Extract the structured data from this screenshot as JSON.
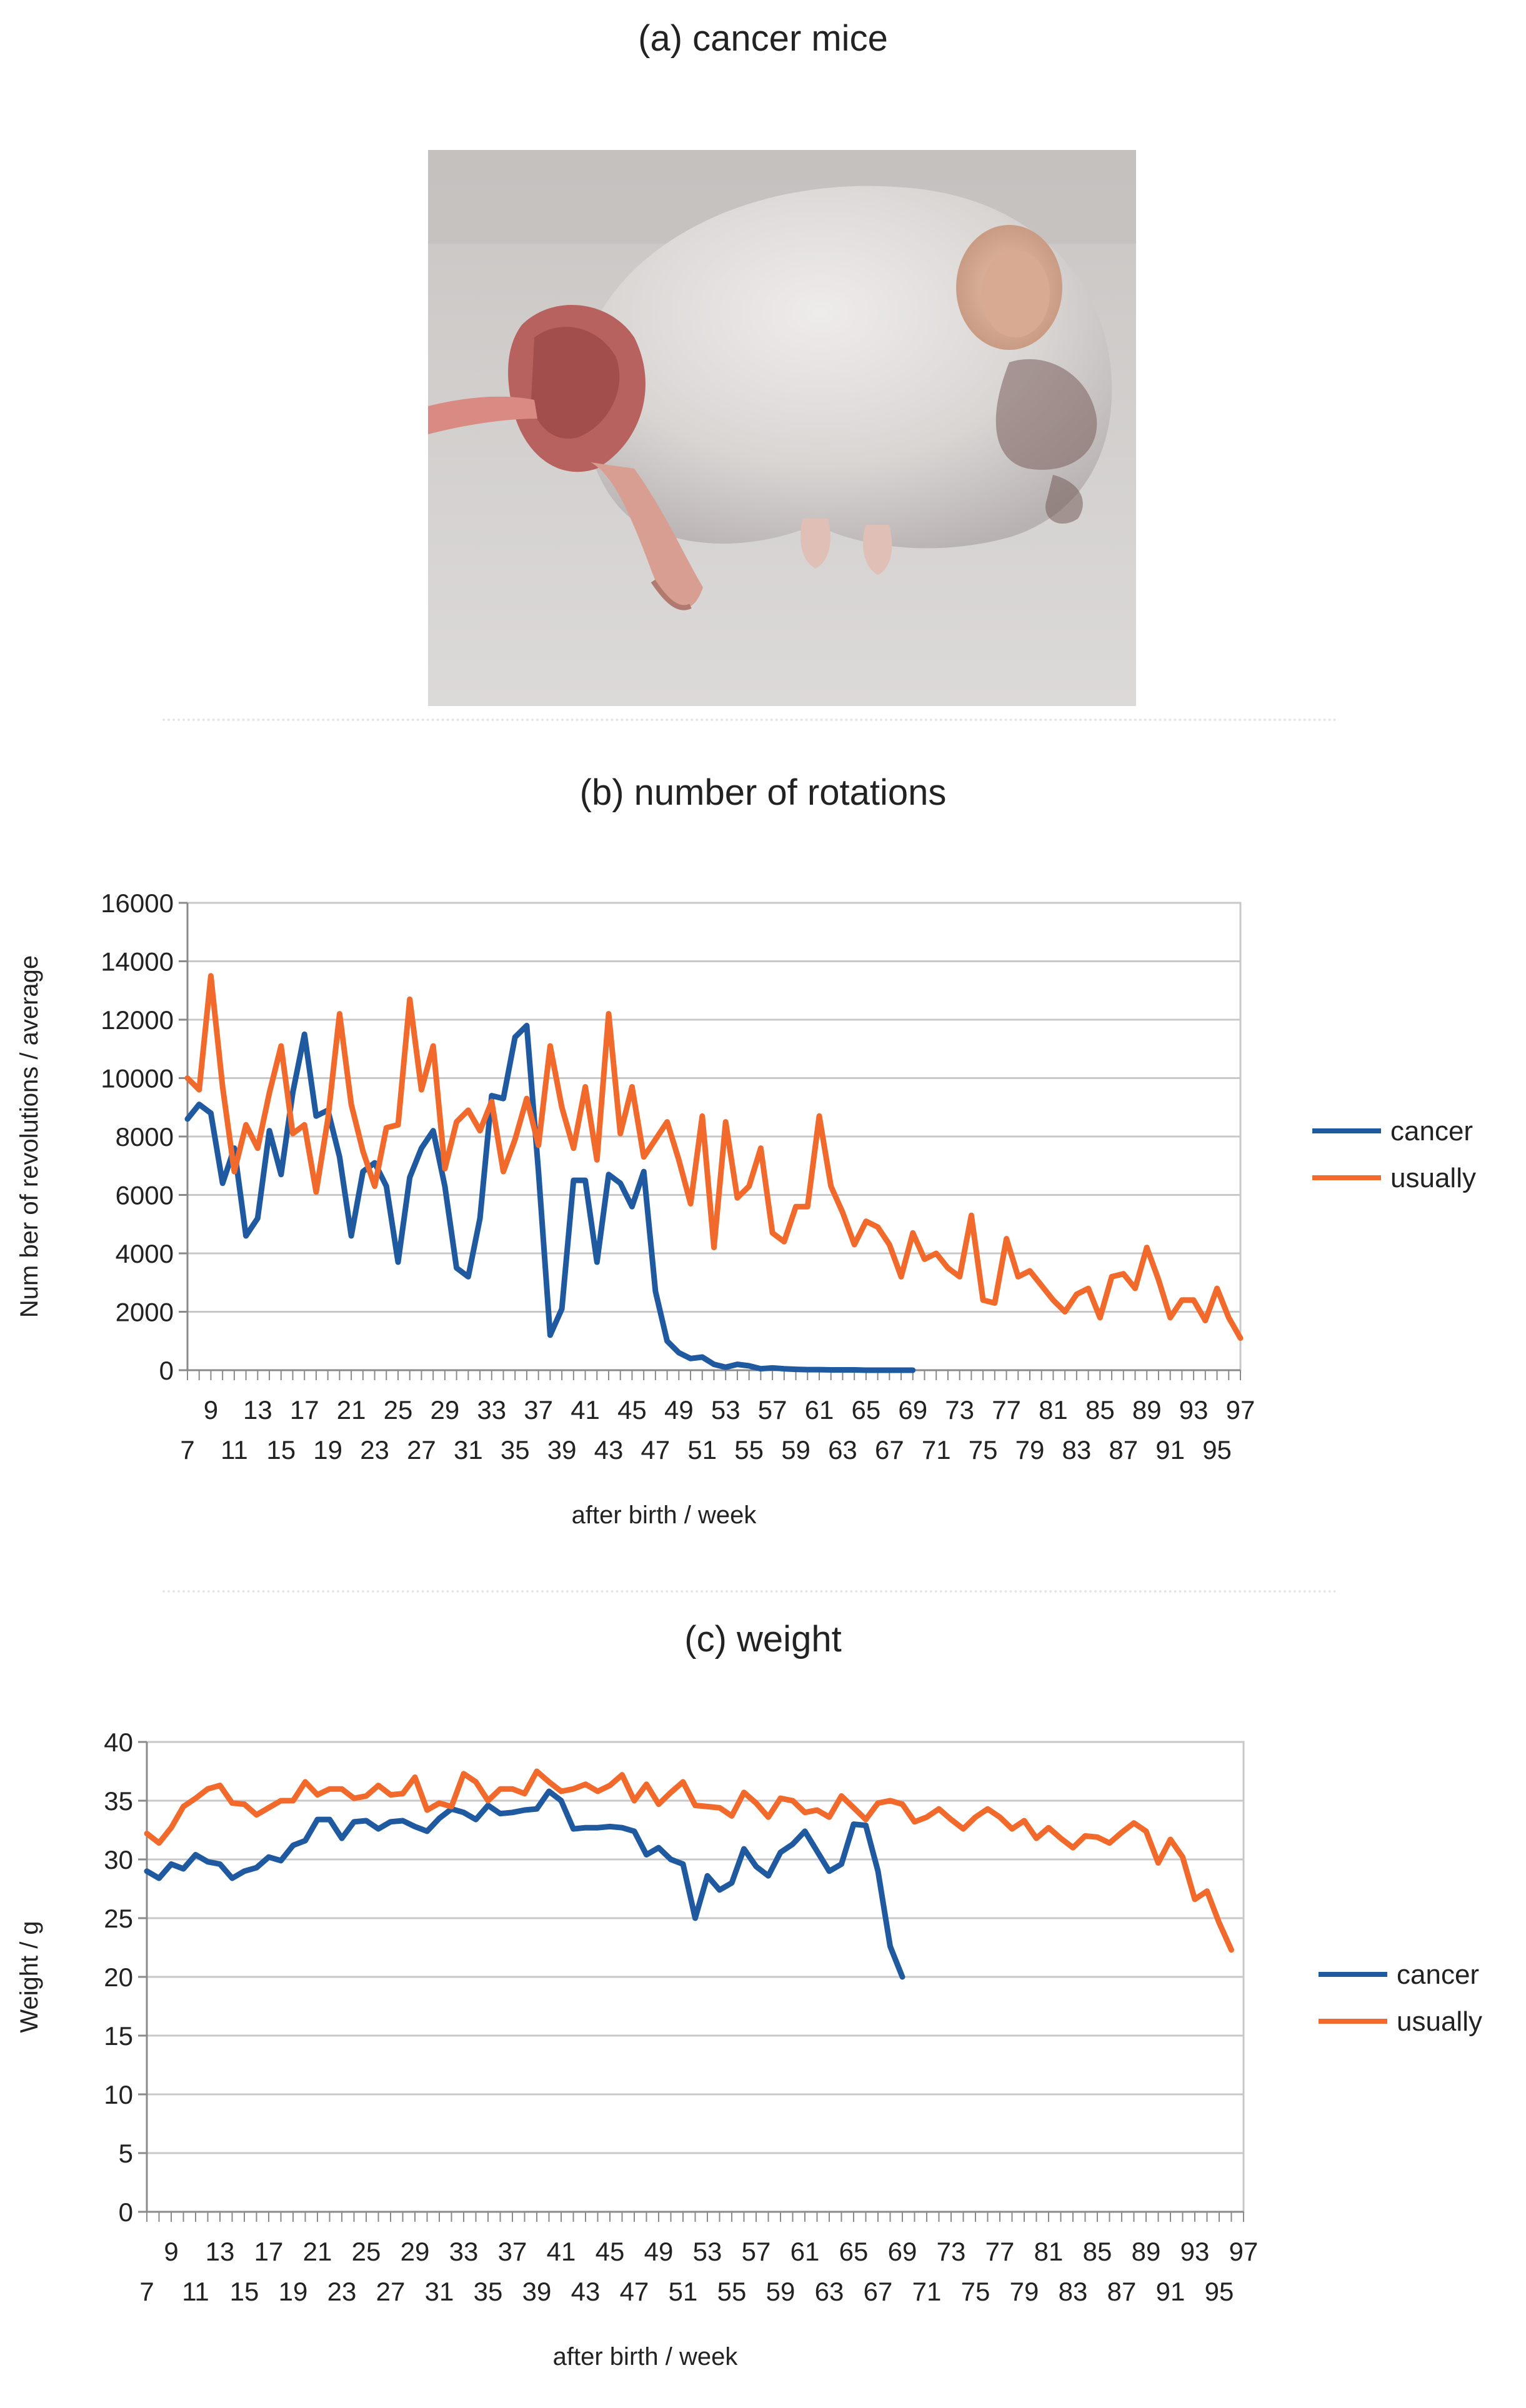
{
  "panels": {
    "a_title": "(a) cancer mice",
    "b_title": "(b) number of rotations",
    "c_title": "(c) weight"
  },
  "photo": {
    "subject": "cancer-mouse-photo"
  },
  "colors": {
    "cancer": "#1f5aa0",
    "usually": "#f26a2b",
    "grid": "#c8c8c8",
    "axis": "#8a8a8a"
  },
  "chart_data": [
    {
      "type": "line",
      "title": "(b) number of rotations",
      "xlabel": "after birth / week",
      "ylabel": "Num ber of revolutions / average",
      "ylim": [
        0,
        16000
      ],
      "yticks": [
        "0",
        "2000",
        "4000",
        "6000",
        "8000",
        "10000",
        "12000",
        "14000",
        "16000"
      ],
      "x_range": [
        7,
        97
      ],
      "x_tick_labels_upper": [
        "9",
        "13",
        "17",
        "21",
        "25",
        "29",
        "33",
        "37",
        "41",
        "45",
        "49",
        "53",
        "57",
        "61",
        "65",
        "69",
        "73",
        "77",
        "81",
        "85",
        "89",
        "93",
        "97"
      ],
      "x_tick_labels_lower": [
        "7",
        "11",
        "15",
        "19",
        "23",
        "27",
        "31",
        "35",
        "39",
        "43",
        "47",
        "51",
        "55",
        "59",
        "63",
        "67",
        "71",
        "75",
        "79",
        "83",
        "87",
        "91",
        "95"
      ],
      "legend": [
        "cancer",
        "usually"
      ],
      "series": [
        {
          "name": "cancer",
          "x_start": 7,
          "values": [
            8600,
            9100,
            8800,
            6400,
            7600,
            4600,
            5200,
            8200,
            6700,
            9500,
            11500,
            8700,
            8900,
            7300,
            4600,
            6800,
            7100,
            6300,
            3700,
            6600,
            7600,
            8200,
            6300,
            3500,
            3200,
            5200,
            9400,
            9300,
            11400,
            11800,
            6800,
            1200,
            2100,
            6500,
            6500,
            3700,
            6700,
            6400,
            5600,
            6800,
            2700,
            1000,
            600,
            400,
            450,
            200,
            100,
            200,
            150,
            50,
            80,
            50,
            30,
            20,
            20,
            10,
            10,
            10,
            0,
            0,
            0,
            0,
            0
          ]
        },
        {
          "name": "usually",
          "x_start": 7,
          "values": [
            10000,
            9600,
            13500,
            9700,
            6800,
            8400,
            7600,
            9500,
            11100,
            8100,
            8400,
            6100,
            8600,
            12200,
            9100,
            7500,
            6300,
            8300,
            8400,
            12700,
            9600,
            11100,
            6900,
            8500,
            8900,
            8200,
            9200,
            6800,
            7900,
            9300,
            7700,
            11100,
            9000,
            7600,
            9700,
            7200,
            12200,
            8100,
            9700,
            7300,
            7900,
            8500,
            7200,
            5700,
            8700,
            4200,
            8500,
            5900,
            6300,
            7600,
            4700,
            4400,
            5600,
            5600,
            8700,
            6300,
            5400,
            4300,
            5100,
            4900,
            4300,
            3200,
            4700,
            3800,
            4000,
            3500,
            3200,
            5300,
            2400,
            2300,
            4500,
            3200,
            3400,
            2900,
            2400,
            2000,
            2600,
            2800,
            1800,
            3200,
            3300,
            2800,
            4200,
            3100,
            1800,
            2400,
            2400,
            1700,
            2800,
            1800,
            1100
          ]
        }
      ]
    },
    {
      "type": "line",
      "title": "(c) weight",
      "xlabel": "after birth / week",
      "ylabel": "Weight / g",
      "ylim": [
        0,
        40
      ],
      "yticks": [
        "0",
        "5",
        "10",
        "15",
        "20",
        "25",
        "30",
        "35",
        "40"
      ],
      "x_range": [
        7,
        97
      ],
      "x_tick_labels_upper": [
        "9",
        "13",
        "17",
        "21",
        "25",
        "29",
        "33",
        "37",
        "41",
        "45",
        "49",
        "53",
        "57",
        "61",
        "65",
        "69",
        "73",
        "77",
        "81",
        "85",
        "89",
        "93",
        "97"
      ],
      "x_tick_labels_lower": [
        "7",
        "11",
        "15",
        "19",
        "23",
        "27",
        "31",
        "35",
        "39",
        "43",
        "47",
        "51",
        "55",
        "59",
        "63",
        "67",
        "71",
        "75",
        "79",
        "83",
        "87",
        "91",
        "95"
      ],
      "legend": [
        "cancer",
        "usually"
      ],
      "series": [
        {
          "name": "cancer",
          "x_start": 7,
          "values": [
            29.0,
            28.4,
            29.6,
            29.2,
            30.4,
            29.8,
            29.6,
            28.4,
            29.0,
            29.3,
            30.2,
            29.9,
            31.2,
            31.6,
            33.4,
            33.4,
            31.8,
            33.2,
            33.3,
            32.6,
            33.2,
            33.3,
            32.8,
            32.4,
            33.5,
            34.3,
            34.0,
            33.4,
            34.6,
            33.9,
            34.0,
            34.2,
            34.3,
            35.8,
            35.0,
            32.6,
            32.7,
            32.7,
            32.8,
            32.7,
            32.4,
            30.4,
            31.0,
            30.0,
            29.6,
            25.0,
            28.6,
            27.4,
            28.0,
            30.9,
            29.4,
            28.6,
            30.6,
            31.3,
            32.4,
            30.7,
            29.0,
            29.6,
            33.0,
            32.9,
            29.0,
            22.6,
            20.0
          ]
        },
        {
          "name": "usually",
          "x_start": 7,
          "values": [
            32.2,
            31.4,
            32.7,
            34.5,
            35.2,
            36.0,
            36.3,
            34.8,
            34.7,
            33.8,
            34.4,
            35.0,
            35.0,
            36.6,
            35.5,
            36.0,
            36.0,
            35.2,
            35.4,
            36.3,
            35.5,
            35.6,
            37.0,
            34.2,
            34.8,
            34.5,
            37.3,
            36.6,
            35.0,
            36.0,
            36.0,
            35.6,
            37.5,
            36.6,
            35.8,
            36.0,
            36.4,
            35.8,
            36.3,
            37.2,
            35.0,
            36.4,
            34.7,
            35.7,
            36.6,
            34.6,
            34.5,
            34.4,
            33.7,
            35.7,
            34.8,
            33.6,
            35.2,
            35.0,
            34.0,
            34.2,
            33.6,
            35.4,
            34.4,
            33.4,
            34.8,
            35.0,
            34.7,
            33.2,
            33.6,
            34.3,
            33.4,
            32.6,
            33.6,
            34.3,
            33.6,
            32.6,
            33.3,
            31.8,
            32.7,
            31.8,
            31.0,
            32.0,
            31.9,
            31.4,
            32.3,
            33.1,
            32.4,
            29.7,
            31.7,
            30.2,
            26.6,
            27.3,
            24.6,
            22.3
          ]
        }
      ]
    }
  ]
}
